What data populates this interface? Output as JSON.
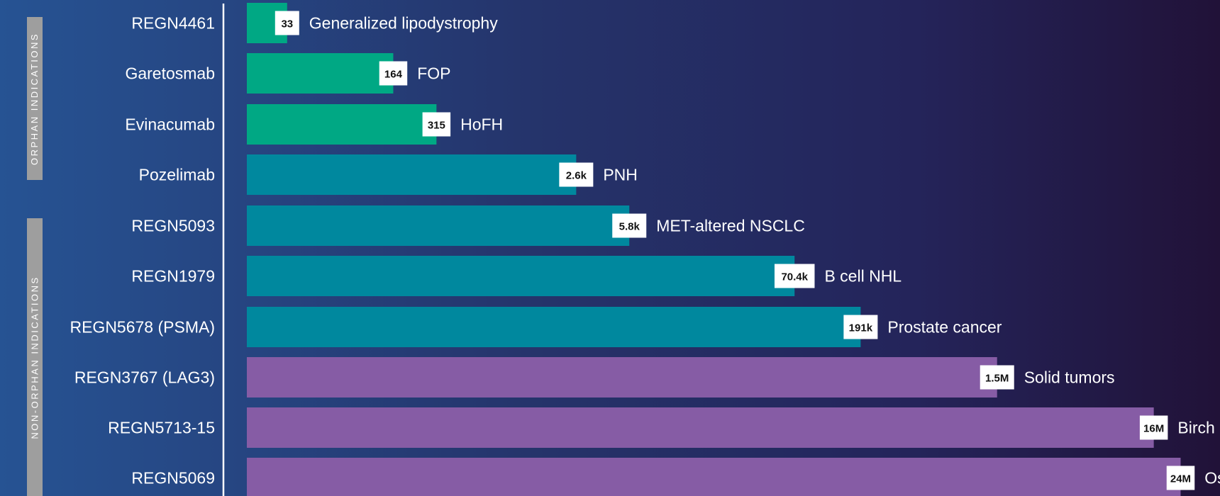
{
  "sections": [
    {
      "label": "ORPHAN INDICATIONS"
    },
    {
      "label": "NON-ORPHAN INDICATIONS"
    }
  ],
  "colors": {
    "orphan_small": "#00a884",
    "teal": "#00889e",
    "purple": "#865ca5",
    "label_box": "#ffffff",
    "text": "#ffffff"
  },
  "chart_data": {
    "type": "bar",
    "orientation": "horizontal",
    "scale": "log",
    "title": "",
    "xlabel": "",
    "ylabel": "",
    "categories": [
      "REGN4461",
      "Garetosmab",
      "Evinacumab",
      "Pozelimab",
      "REGN5093",
      "REGN1979",
      "REGN5678 (PSMA)",
      "REGN3767 (LAG3)",
      "REGN5713-15",
      "REGN5069"
    ],
    "values": [
      33,
      164,
      315,
      2600,
      5800,
      70400,
      191000,
      1500000,
      16000000,
      24000000
    ],
    "value_labels": [
      "33",
      "164",
      "315",
      "2.6k",
      "5.8k",
      "70.4k",
      "191k",
      "1.5M",
      "16M",
      "24M"
    ],
    "indications": [
      "Generalized lipodystrophy",
      "FOP",
      "HoFH",
      "PNH",
      "MET-altered NSCLC",
      "B cell NHL",
      "Prostate cancer",
      "Solid tumors",
      "Birch allergy",
      "Osteoarthritis"
    ],
    "bar_colors": [
      "orphan_small",
      "orphan_small",
      "orphan_small",
      "teal",
      "teal",
      "teal",
      "teal",
      "purple",
      "purple",
      "purple"
    ],
    "grid": false,
    "legend": "none"
  }
}
